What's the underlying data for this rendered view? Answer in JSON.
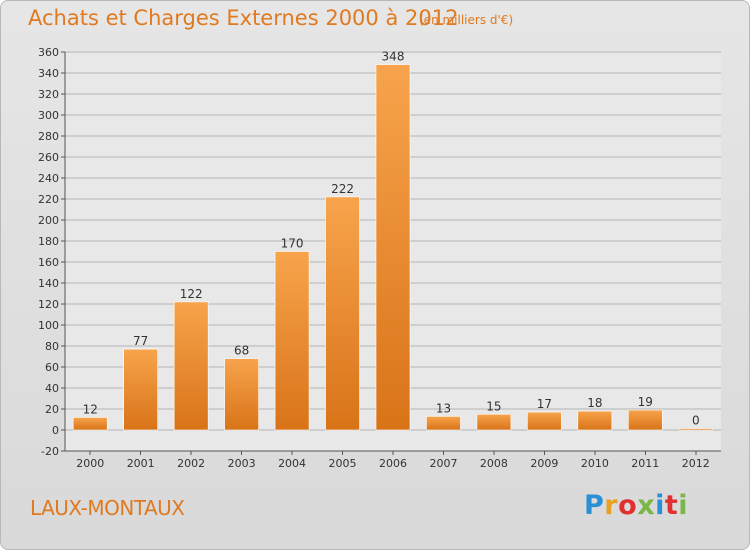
{
  "header": {
    "title": "Achats et Charges Externes 2000 à 2012",
    "subtitle": "(en milliers d'€)"
  },
  "footer": {
    "place": "LAUX-MONTAUX",
    "logo_text": "Proxiti"
  },
  "colors": {
    "bar": "#f0922e",
    "text_accent": "#e07a20",
    "logo": [
      "#2a8fd4",
      "#e8a020",
      "#e03030",
      "#7ab648",
      "#2a8fd4",
      "#e03030",
      "#7ab648"
    ]
  },
  "chart_data": {
    "type": "bar",
    "categories": [
      "2000",
      "2001",
      "2002",
      "2003",
      "2004",
      "2005",
      "2006",
      "2007",
      "2008",
      "2009",
      "2010",
      "2011",
      "2012"
    ],
    "values": [
      12,
      77,
      122,
      68,
      170,
      222,
      348,
      13,
      15,
      17,
      18,
      19,
      0
    ],
    "data_labels": [
      "12",
      "77",
      "122",
      "68",
      "170",
      "222",
      "348",
      "13",
      "15",
      "17",
      "18",
      "19",
      "0"
    ],
    "title": "Achats et Charges Externes 2000 à 2012",
    "xlabel": "",
    "ylabel": "",
    "ylim": [
      -20,
      360
    ],
    "yticks": [
      -20,
      0,
      20,
      40,
      60,
      80,
      100,
      120,
      140,
      160,
      180,
      200,
      220,
      240,
      260,
      280,
      300,
      320,
      340,
      360
    ],
    "grid": true,
    "legend": "none"
  }
}
